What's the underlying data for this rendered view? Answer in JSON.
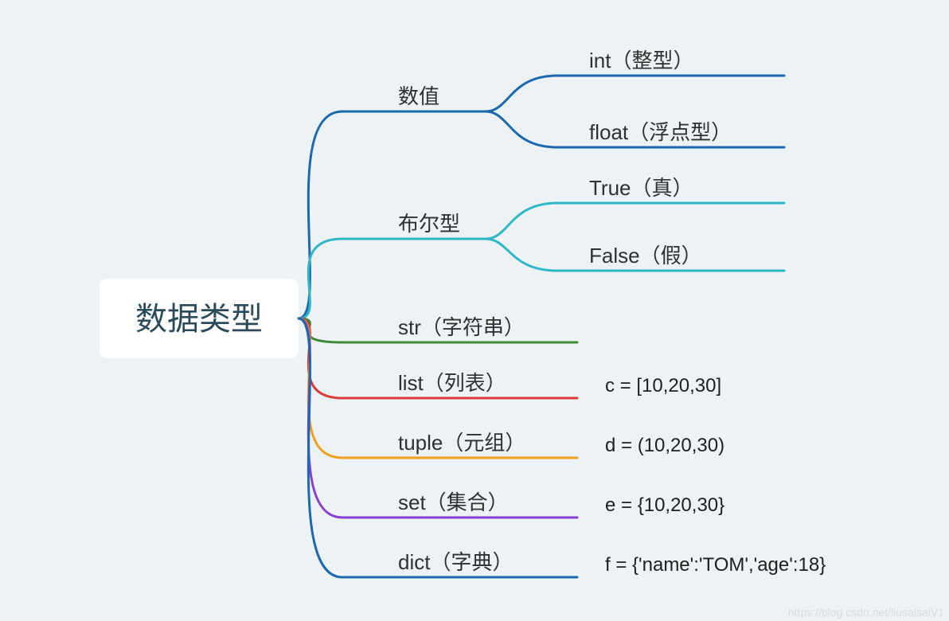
{
  "background_color": "#edf2f4",
  "root": {
    "label": "数据类型",
    "box_fill": "#ffffff",
    "text_color": "#2b4a5a",
    "font_size": 40
  },
  "watermark": "https://blog.csdn.net/liusaisaiV1",
  "styling": {
    "edge_stroke_width": 3,
    "branch_font_size": 26,
    "leaf_font_size": 26,
    "example_font_size": 24
  },
  "branches": [
    {
      "id": "numeric",
      "label": "数值",
      "color": "#1e68b0",
      "children": [
        {
          "label": "int（整型）",
          "color": "#1e68b0"
        },
        {
          "label": "float（浮点型）",
          "color": "#1e68b0"
        }
      ]
    },
    {
      "id": "bool",
      "label": "布尔型",
      "color": "#30b7c7",
      "children": [
        {
          "label": "True（真）",
          "color": "#30b7c7"
        },
        {
          "label": "False（假）",
          "color": "#30b7c7"
        }
      ]
    },
    {
      "id": "str",
      "label": "str（字符串）",
      "color": "#3a8a3a"
    },
    {
      "id": "list",
      "label": "list（列表）",
      "color": "#d93b3b",
      "example": "c = [10,20,30]"
    },
    {
      "id": "tuple",
      "label": "tuple（元组）",
      "color": "#f0a020",
      "example": "d = (10,20,30)"
    },
    {
      "id": "set",
      "label": "set（集合）",
      "color": "#8a3fd1",
      "example": "e = {10,20,30}"
    },
    {
      "id": "dict",
      "label": "dict（字典）",
      "color": "#1e68b0",
      "example": "f =  {'name':'TOM','age':18}"
    }
  ]
}
